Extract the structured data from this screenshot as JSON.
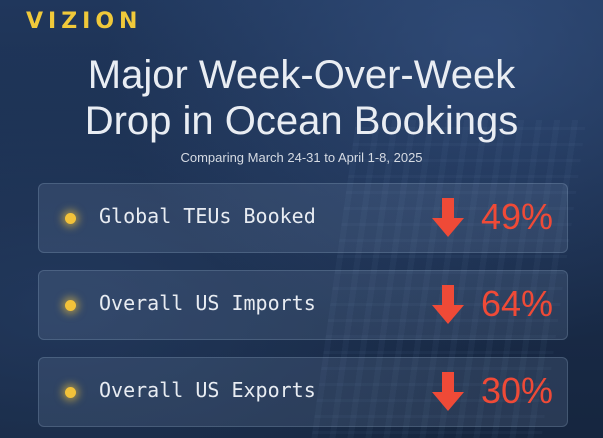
{
  "brand": {
    "logo": "VIZION",
    "color": "#f0c93a"
  },
  "title": {
    "line1": "Major Week-Over-Week",
    "line2": "Drop in Ocean Bookings"
  },
  "subtitle": "Comparing March 24-31 to April 1-8, 2025",
  "colors": {
    "background": "#1a2b47",
    "accent": "#ef4a37",
    "bullet": "#f2c23a"
  },
  "stats": [
    {
      "label": "Global TEUs Booked",
      "value": "49%",
      "direction": "down",
      "icon": "down-arrow-icon"
    },
    {
      "label": "Overall US Imports",
      "value": "64%",
      "direction": "down",
      "icon": "down-arrow-icon"
    },
    {
      "label": "Overall US Exports",
      "value": "30%",
      "direction": "down",
      "icon": "down-arrow-icon"
    }
  ]
}
